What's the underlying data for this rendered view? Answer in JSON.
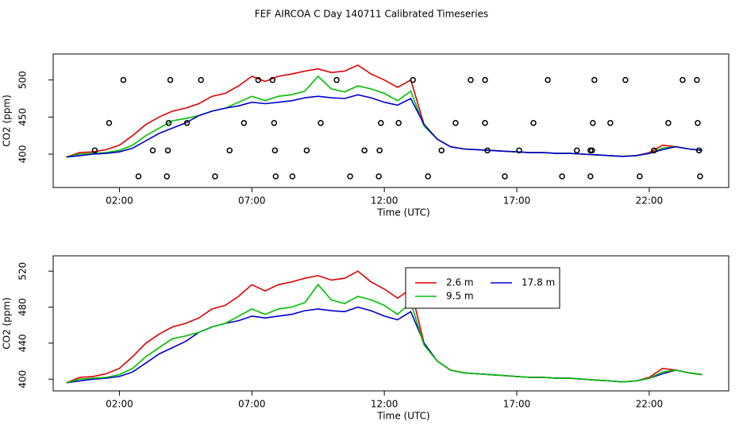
{
  "title": "FEF AIRCOA C  Day 140711  Calibrated Timeseries",
  "chart_data": [
    {
      "type": "line",
      "xlabel": "Time (UTC)",
      "ylabel": "CO2 (ppm)",
      "xlim": [
        -0.5,
        25
      ],
      "ylim": [
        355,
        535
      ],
      "xticks": [
        {
          "value": 2,
          "label": "02:00"
        },
        {
          "value": 7,
          "label": "07:00"
        },
        {
          "value": 12,
          "label": "12:00"
        },
        {
          "value": 17,
          "label": "17:00"
        },
        {
          "value": 22,
          "label": "22:00"
        }
      ],
      "yticks": [
        400,
        450,
        500
      ],
      "x": [
        0,
        0.5,
        1,
        1.5,
        2,
        2.5,
        3,
        3.5,
        4,
        4.5,
        5,
        5.5,
        6,
        6.5,
        7,
        7.5,
        8,
        8.5,
        9,
        9.5,
        10,
        10.5,
        11,
        11.5,
        12,
        12.5,
        13,
        13.5,
        14,
        14.5,
        15,
        15.5,
        16,
        16.5,
        17,
        17.5,
        18,
        18.5,
        19,
        19.5,
        20,
        20.5,
        21,
        21.5,
        22,
        22.5,
        23,
        23.5,
        24
      ],
      "series": [
        {
          "color": "#e00000",
          "values": [
            396,
            402,
            403,
            406,
            412,
            425,
            440,
            450,
            458,
            462,
            468,
            478,
            482,
            492,
            505,
            498,
            505,
            508,
            512,
            515,
            510,
            512,
            520,
            508,
            500,
            490,
            500,
            440,
            420,
            410,
            407,
            406,
            405,
            404,
            403,
            402,
            402,
            401,
            401,
            400,
            399,
            398,
            397,
            398,
            402,
            412,
            410,
            407,
            405
          ]
        },
        {
          "color": "#00c000",
          "values": [
            396,
            400,
            401,
            402,
            405,
            412,
            425,
            435,
            445,
            448,
            452,
            458,
            462,
            470,
            478,
            472,
            478,
            480,
            485,
            505,
            488,
            484,
            492,
            488,
            482,
            472,
            485,
            438,
            420,
            410,
            407,
            406,
            405,
            404,
            403,
            402,
            402,
            401,
            401,
            400,
            399,
            398,
            397,
            398,
            401,
            408,
            410,
            407,
            405
          ]
        },
        {
          "color": "#0000d0",
          "values": [
            396,
            398,
            400,
            401,
            403,
            408,
            418,
            428,
            435,
            442,
            452,
            458,
            462,
            465,
            470,
            468,
            470,
            472,
            476,
            478,
            476,
            475,
            480,
            476,
            470,
            466,
            475,
            440,
            420,
            410,
            407,
            406,
            405,
            404,
            403,
            402,
            402,
            401,
            401,
            400,
            399,
            398,
            397,
            398,
            401,
            406,
            410,
            407,
            405
          ]
        }
      ],
      "points": {
        "color": "#000000",
        "x": [
          2.15,
          3.92,
          5.08,
          7.24,
          7.78,
          10.2,
          13.08,
          15.26,
          15.8,
          18.17,
          19.93,
          21.1,
          23.26,
          23.8,
          1.61,
          3.86,
          4.55,
          6.7,
          7.84,
          9.6,
          11.87,
          12.54,
          14.69,
          15.8,
          17.63,
          19.87,
          20.53,
          22.72,
          23.83,
          1.07,
          3.26,
          3.83,
          6.16,
          7.87,
          9.07,
          11.25,
          11.82,
          14.16,
          15.89,
          17.09,
          19.27,
          19.78,
          19.84,
          22.18,
          23.88,
          2.72,
          3.79,
          5.61,
          7.9,
          8.53,
          10.71,
          11.79,
          13.65,
          16.55,
          18.71,
          19.78,
          21.64,
          23.92
        ],
        "y": [
          500,
          500,
          500,
          500,
          500,
          500,
          500,
          500,
          500,
          500,
          500,
          500,
          500,
          500,
          442,
          442,
          442,
          442,
          442,
          442,
          442,
          442,
          442,
          442,
          442,
          442,
          442,
          442,
          442,
          405,
          405,
          405,
          405,
          405,
          405,
          405,
          405,
          405,
          405,
          405,
          405,
          405,
          405,
          405,
          405,
          370,
          370,
          370,
          370,
          370,
          370,
          370,
          370,
          370,
          370,
          370,
          370,
          370
        ]
      }
    },
    {
      "type": "line",
      "xlabel": "Time (UTC)",
      "ylabel": "CO2 (ppm)",
      "xlim": [
        -0.5,
        25
      ],
      "ylim": [
        387,
        537
      ],
      "legend": "top",
      "xticks": [
        {
          "value": 2,
          "label": "02:00"
        },
        {
          "value": 7,
          "label": "07:00"
        },
        {
          "value": 12,
          "label": "12:00"
        },
        {
          "value": 17,
          "label": "17:00"
        },
        {
          "value": 22,
          "label": "22:00"
        }
      ],
      "yticks": [
        400,
        440,
        480,
        520
      ],
      "x": [
        0,
        0.5,
        1,
        1.5,
        2,
        2.5,
        3,
        3.5,
        4,
        4.5,
        5,
        5.5,
        6,
        6.5,
        7,
        7.5,
        8,
        8.5,
        9,
        9.5,
        10,
        10.5,
        11,
        11.5,
        12,
        12.5,
        13,
        13.5,
        14,
        14.5,
        15,
        15.5,
        16,
        16.5,
        17,
        17.5,
        18,
        18.5,
        19,
        19.5,
        20,
        20.5,
        21,
        21.5,
        22,
        22.5,
        23,
        23.5,
        24
      ],
      "series": [
        {
          "name": "2.6 m",
          "color": "#e00000",
          "values": [
            396,
            402,
            403,
            406,
            412,
            425,
            440,
            450,
            458,
            462,
            468,
            478,
            482,
            492,
            505,
            498,
            505,
            508,
            512,
            515,
            510,
            512,
            520,
            508,
            500,
            490,
            500,
            440,
            420,
            410,
            407,
            406,
            405,
            404,
            403,
            402,
            402,
            401,
            401,
            400,
            399,
            398,
            397,
            398,
            402,
            412,
            410,
            407,
            405
          ]
        },
        {
          "name": "17.8 m",
          "color": "#0000d0",
          "values": [
            396,
            398,
            400,
            401,
            403,
            408,
            418,
            428,
            435,
            442,
            452,
            458,
            462,
            465,
            470,
            468,
            470,
            472,
            476,
            478,
            476,
            475,
            480,
            476,
            470,
            466,
            475,
            440,
            420,
            410,
            407,
            406,
            405,
            404,
            403,
            402,
            402,
            401,
            401,
            400,
            399,
            398,
            397,
            398,
            401,
            406,
            410,
            407,
            405
          ]
        },
        {
          "name": "9.5 m",
          "color": "#00c000",
          "values": [
            396,
            400,
            401,
            402,
            405,
            412,
            425,
            435,
            445,
            448,
            452,
            458,
            462,
            470,
            478,
            472,
            478,
            480,
            485,
            505,
            488,
            484,
            492,
            488,
            482,
            472,
            485,
            438,
            420,
            410,
            407,
            406,
            405,
            404,
            403,
            402,
            402,
            401,
            401,
            400,
            399,
            398,
            397,
            398,
            401,
            408,
            410,
            407,
            405
          ]
        }
      ]
    }
  ]
}
